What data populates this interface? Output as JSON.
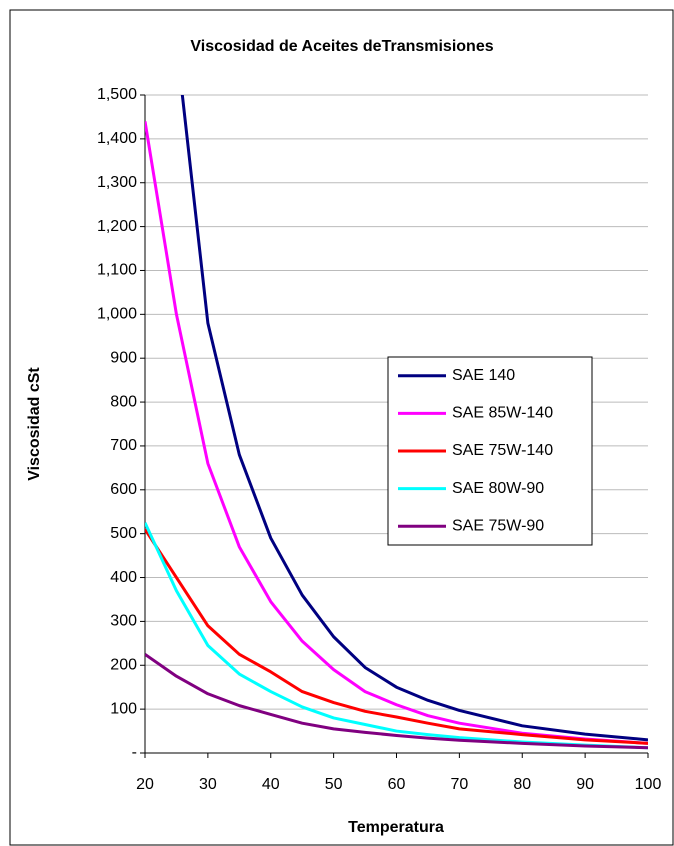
{
  "chart_data": {
    "type": "line",
    "title": "Viscosidad de Aceites deTransmisiones",
    "xlabel": "Temperatura",
    "ylabel": "Viscosidad cSt",
    "x": [
      20,
      25,
      30,
      35,
      40,
      45,
      50,
      55,
      60,
      65,
      70,
      80,
      90,
      100
    ],
    "series": [
      {
        "name": "SAE 140",
        "color": "#000080",
        "values": [
          null,
          1620,
          980,
          680,
          490,
          360,
          265,
          195,
          150,
          120,
          97,
          62,
          43,
          30
        ]
      },
      {
        "name": "SAE 85W-140",
        "color": "#ff00ff",
        "values": [
          1440,
          1000,
          660,
          470,
          345,
          255,
          190,
          140,
          110,
          85,
          68,
          45,
          32,
          22
        ]
      },
      {
        "name": "SAE 75W-140",
        "color": "#ff0000",
        "values": [
          510,
          400,
          290,
          225,
          185,
          140,
          115,
          95,
          82,
          68,
          55,
          42,
          30,
          22
        ]
      },
      {
        "name": "SAE 80W-90",
        "color": "#00ffff",
        "values": [
          525,
          370,
          245,
          180,
          140,
          105,
          80,
          65,
          50,
          42,
          35,
          25,
          18,
          12
        ]
      },
      {
        "name": "SAE 75W-90",
        "color": "#800080",
        "values": [
          225,
          175,
          135,
          108,
          88,
          68,
          55,
          47,
          40,
          34,
          29,
          22,
          16,
          12
        ]
      }
    ],
    "xlim": [
      20,
      100
    ],
    "xticks": [
      20,
      30,
      40,
      50,
      60,
      70,
      80,
      90,
      100
    ],
    "ylim": [
      0,
      1500
    ],
    "yticks": [
      {
        "value": 0,
        "label": "-"
      },
      100,
      200,
      300,
      400,
      500,
      600,
      700,
      800,
      900,
      {
        "value": 1000,
        "label": "1,000"
      },
      {
        "value": 1100,
        "label": "1,100"
      },
      {
        "value": 1200,
        "label": "1,200"
      },
      {
        "value": 1300,
        "label": "1,300"
      },
      {
        "value": 1400,
        "label": "1,400"
      },
      {
        "value": 1500,
        "label": "1,500"
      }
    ],
    "grid": true,
    "legend": "right"
  }
}
